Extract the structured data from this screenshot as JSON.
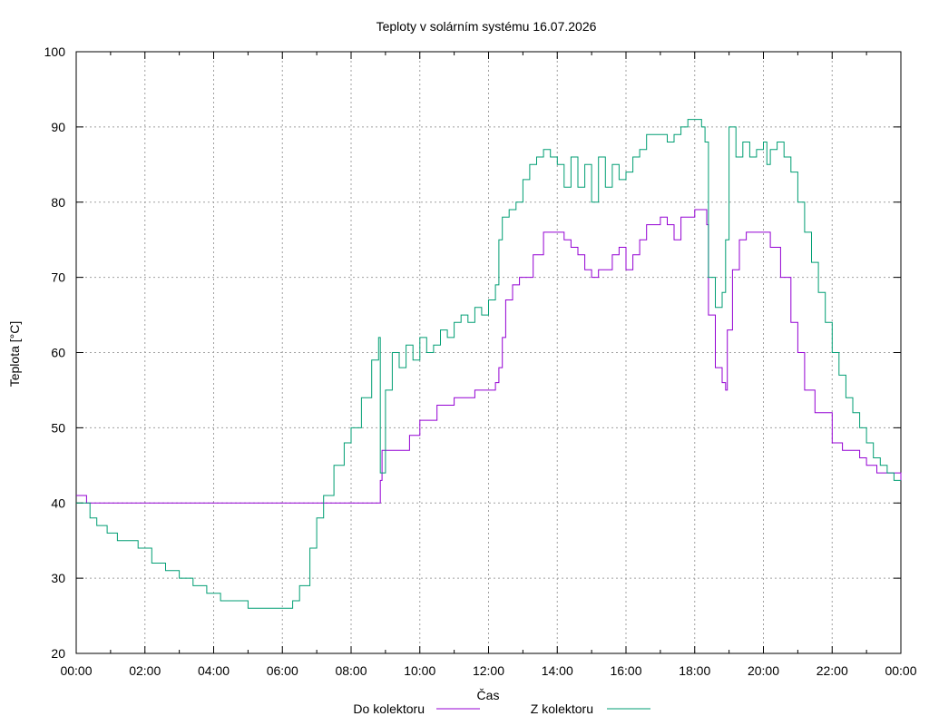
{
  "chart_data": {
    "type": "line",
    "title": "Teploty v solárním systému 16.07.2026",
    "xlabel": "Čas",
    "ylabel": "Teplota [°C]",
    "xlim": [
      0,
      24
    ],
    "ylim": [
      20,
      100
    ],
    "xticks": [
      0,
      2,
      4,
      6,
      8,
      10,
      12,
      14,
      16,
      18,
      20,
      22,
      24
    ],
    "xtick_labels": [
      "00:00",
      "02:00",
      "04:00",
      "06:00",
      "08:00",
      "10:00",
      "12:00",
      "14:00",
      "16:00",
      "18:00",
      "20:00",
      "22:00",
      "00:00"
    ],
    "yticks": [
      20,
      30,
      40,
      50,
      60,
      70,
      80,
      90,
      100
    ],
    "ytick_labels": [
      "20",
      "30",
      "40",
      "50",
      "60",
      "70",
      "80",
      "90",
      "100"
    ],
    "grid": true,
    "legend": "bottom",
    "series": [
      {
        "name": "Do kolektoru",
        "color": "#9400d3",
        "x": [
          0,
          0.25,
          0.3,
          6,
          8.8,
          8.85,
          8.9,
          9.4,
          9.7,
          10.0,
          10.5,
          11.0,
          11.6,
          12.2,
          12.3,
          12.4,
          12.5,
          12.7,
          12.9,
          13.3,
          13.6,
          14.0,
          14.2,
          14.4,
          14.6,
          14.8,
          15.0,
          15.2,
          15.4,
          15.6,
          15.8,
          16.0,
          16.2,
          16.4,
          16.6,
          16.8,
          17.0,
          17.2,
          17.4,
          17.6,
          18.0,
          18.3,
          18.35,
          18.4,
          18.6,
          18.8,
          18.9,
          18.95,
          19.1,
          19.3,
          19.5,
          19.8,
          20.0,
          20.2,
          20.5,
          20.8,
          21.0,
          21.2,
          21.5,
          22.0,
          22.3,
          22.6,
          22.8,
          23.0,
          23.3,
          23.6,
          23.8,
          24.0
        ],
        "y": [
          41,
          41,
          40,
          40,
          40,
          43,
          47,
          47,
          49,
          51,
          53,
          54,
          55,
          56,
          58,
          62,
          67,
          69,
          70,
          73,
          76,
          76,
          75,
          74,
          73,
          71,
          70,
          71,
          71,
          73,
          74,
          71,
          73,
          75,
          77,
          77,
          78,
          77,
          75,
          78,
          79,
          79,
          77,
          65,
          58,
          56,
          55,
          63,
          71,
          75,
          76,
          76,
          76,
          74,
          70,
          64,
          60,
          55,
          52,
          48,
          47,
          47,
          46,
          45,
          44,
          44,
          44,
          43
        ]
      },
      {
        "name": "Z kolektoru",
        "color": "#009e73",
        "x": [
          0,
          0.2,
          0.4,
          0.6,
          0.9,
          1.2,
          1.5,
          1.8,
          2.2,
          2.6,
          3.0,
          3.4,
          3.8,
          4.0,
          4.2,
          4.6,
          5.0,
          5.5,
          6.0,
          6.3,
          6.5,
          6.8,
          7.0,
          7.2,
          7.5,
          7.8,
          8.0,
          8.3,
          8.6,
          8.8,
          8.85,
          9.0,
          9.2,
          9.4,
          9.6,
          9.8,
          10.0,
          10.2,
          10.4,
          10.6,
          10.8,
          11.0,
          11.2,
          11.4,
          11.6,
          11.8,
          12.0,
          12.2,
          12.3,
          12.4,
          12.6,
          12.8,
          13.0,
          13.2,
          13.4,
          13.6,
          13.8,
          14.0,
          14.2,
          14.4,
          14.6,
          14.8,
          15.0,
          15.2,
          15.4,
          15.6,
          15.8,
          16.0,
          16.2,
          16.4,
          16.6,
          16.8,
          17.0,
          17.2,
          17.4,
          17.6,
          17.8,
          18.0,
          18.2,
          18.3,
          18.4,
          18.6,
          18.8,
          18.9,
          19.0,
          19.2,
          19.4,
          19.6,
          19.8,
          20.0,
          20.1,
          20.2,
          20.4,
          20.6,
          20.8,
          21.0,
          21.2,
          21.4,
          21.6,
          21.8,
          22.0,
          22.2,
          22.4,
          22.6,
          22.8,
          23.0,
          23.2,
          23.4,
          23.6,
          23.8,
          24.0
        ],
        "y": [
          40,
          40,
          38,
          37,
          36,
          35,
          35,
          34,
          32,
          31,
          30,
          29,
          28,
          28,
          27,
          27,
          26,
          26,
          26,
          27,
          29,
          34,
          38,
          41,
          45,
          48,
          50,
          54,
          59,
          62,
          44,
          55,
          60,
          58,
          61,
          59,
          62,
          60,
          61,
          63,
          62,
          64,
          65,
          64,
          66,
          65,
          67,
          69,
          75,
          78,
          79,
          80,
          83,
          85,
          86,
          87,
          86,
          85,
          82,
          86,
          82,
          85,
          80,
          86,
          82,
          85,
          83,
          84,
          86,
          87,
          89,
          89,
          89,
          88,
          89,
          90,
          91,
          91,
          90,
          88,
          70,
          66,
          68,
          75,
          90,
          86,
          88,
          86,
          87,
          88,
          85,
          87,
          88,
          86,
          84,
          80,
          76,
          72,
          68,
          64,
          60,
          57,
          54,
          52,
          50,
          48,
          46,
          45,
          44,
          43,
          43
        ]
      }
    ]
  }
}
